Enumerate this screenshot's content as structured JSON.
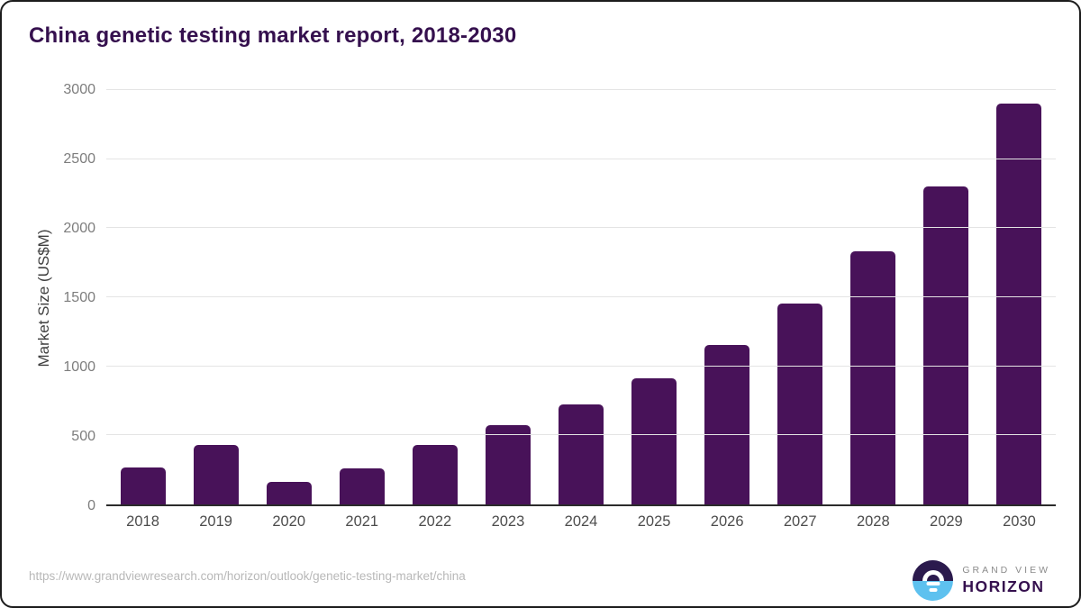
{
  "header": {
    "title": "China genetic testing market report, 2018-2030"
  },
  "chart_data": {
    "type": "bar",
    "title": "China genetic testing market report, 2018-2030",
    "categories": [
      "2018",
      "2019",
      "2020",
      "2021",
      "2022",
      "2023",
      "2024",
      "2025",
      "2026",
      "2027",
      "2028",
      "2029",
      "2030"
    ],
    "values": [
      267,
      432,
      166,
      264,
      430,
      576,
      726,
      915,
      1152,
      1452,
      1830,
      2305,
      2900
    ],
    "xlabel": "",
    "ylabel": "Market Size (US$M)",
    "ylim": [
      0,
      3000
    ],
    "yticks": [
      0,
      500,
      1000,
      1500,
      2000,
      2500,
      3000
    ],
    "grid": true,
    "legend": false,
    "bar_color": "#481259"
  },
  "footer": {
    "source_url": "https://www.grandviewresearch.com/horizon/outlook/genetic-testing-market/china",
    "logo": {
      "line1": "GRAND VIEW",
      "line2": "HORIZON"
    }
  },
  "colors": {
    "accent_purple": "#481259",
    "title_purple": "#35104e",
    "logo_dark": "#2b1a4d",
    "logo_blue": "#5ec1ef",
    "gridline": "#e4e4e4",
    "axis_line": "#2b2b2b",
    "tick_label": "#7d7d7d",
    "x_label": "#4c4c4c",
    "url_gray": "#b8b8b8"
  }
}
